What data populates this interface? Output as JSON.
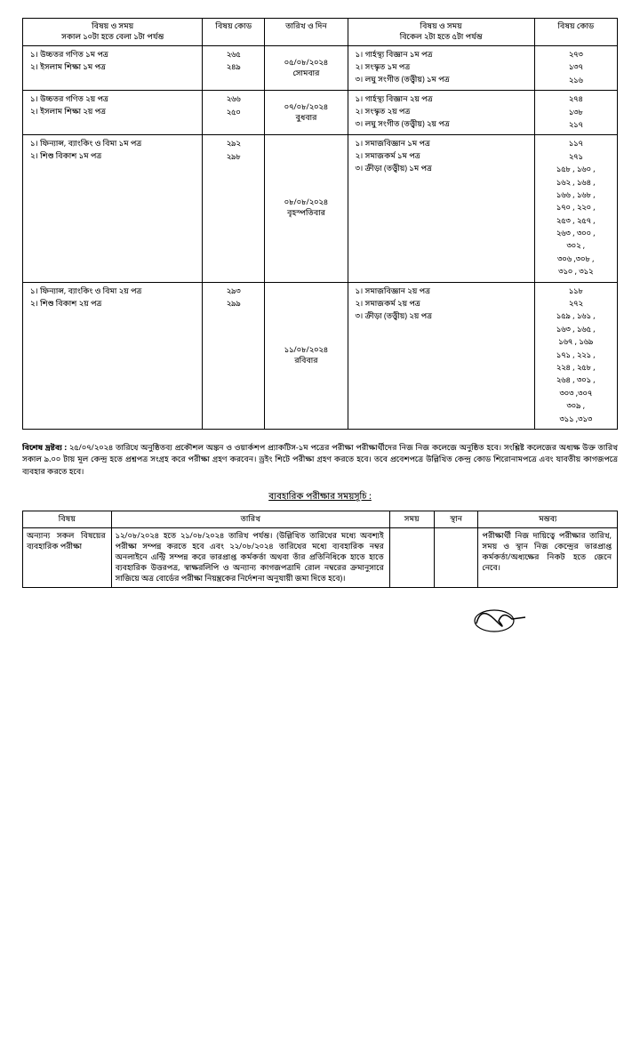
{
  "mainTable": {
    "headers": {
      "morning": "বিষয় ও সময়",
      "morningSub": "সকাল ১০টা হতে বেলা ১টা পর্যন্ত",
      "code1": "বিষয় কোড",
      "date": "তারিখ ও দিন",
      "afternoon": "বিষয় ও সময়",
      "afternoonSub": "বিকেল ২টা হতে ৫টা পর্যন্ত",
      "code2": "বিষয় কোড"
    },
    "rows": [
      {
        "morning": [
          "১।  উচ্চতর গণিত ১ম পত্র",
          "২।  ইসলাম শিক্ষা ১ম পত্র"
        ],
        "code1": [
          "২৬৫",
          "২৪৯"
        ],
        "date": "০৫/০৮/২০২৪\nসোমবার",
        "afternoon": [
          "১।   গার্হস্থ্য বিজ্ঞান ১ম পত্র",
          "২।   সংস্কৃত ১ম পত্র",
          "৩।   লঘু সংগীত (তত্ত্বীয়) ১ম পত্র"
        ],
        "code2": [
          "২৭৩",
          "১৩৭",
          "২১৬"
        ]
      },
      {
        "morning": [
          "১।  উচ্চতর গণিত ২য় পত্র",
          "২।  ইসলাম শিক্ষা ২য় পত্র"
        ],
        "code1": [
          "২৬৬",
          "২৫০"
        ],
        "date": "০৭/০৮/২০২৪\nবুধবার",
        "afternoon": [
          "১।   গার্হস্থ্য বিজ্ঞান ২য় পত্র",
          "২।   সংস্কৃত ২য় পত্র",
          "৩।   লঘু  সংগীত (তত্ত্বীয়) ২য় পত্র"
        ],
        "code2": [
          "২৭৪",
          "১৩৮",
          "২১৭"
        ]
      },
      {
        "morning": [
          "১।  ফিন্যান্স, ব্যাংকিং ও বিমা ১ম পত্র",
          "২।  শিশু বিকাশ ১ম পত্র"
        ],
        "code1": [
          "২৯২",
          "২৯৮"
        ],
        "date": "০৮/০৮/২০২৪\nবৃহস্পতিবার",
        "afternoon": [
          "১।   সমাজবিজ্ঞান ১ম পত্র",
          "২।   সমাজকর্ম ১ম পত্র",
          "৩।   ক্রীড়া (তত্ত্বীয়) ১ম পত্র"
        ],
        "code2": [
          "১১৭",
          "২৭১",
          "১৫৮ , ১৬০ ,",
          "১৬২ , ১৬৪ ,",
          "১৬৬ , ১৬৮ ,",
          "১৭০ , ২২০ ,",
          "২৫৩ , ২৫৭ ,",
          "২৬৩ ,  ৩০০ ,",
          "৩০২ ,",
          "৩০৬ ,৩০৮ ,",
          "৩১০ , ৩১২"
        ]
      },
      {
        "morning": [
          "১।   ফিন্যান্স, ব্যাংকিং ও বিমা ২য় পত্র",
          "২।   শিশু বিকাশ ২য় পত্র"
        ],
        "code1": [
          "২৯৩",
          "২৯৯"
        ],
        "date": "১১/০৮/২০২৪\nরবিবার",
        "afternoon": [
          "১।   সমাজবিজ্ঞান ২য় পত্র",
          "২।   সমাজকর্ম ২য় পত্র",
          "৩।   ক্রীড়া (তত্ত্বীয়) ২য় পত্র"
        ],
        "code2": [
          "১১৮",
          "২৭২",
          "১৫৯ , ১৬১ ,",
          "১৬৩ , ১৬৫ ,",
          "১৬৭ , ১৬৯",
          "১৭১ , ২২১ ,",
          "২২৪ , ২৫৮ ,",
          "২৬৪ , ৩০১ ,",
          "৩০৩ ,৩০৭",
          "৩০৯ ,",
          "৩১১ ,৩১৩"
        ]
      }
    ]
  },
  "noteLabel": "বিশেষ দ্রষ্টব্য :",
  "noteText": "২৫/০৭/২০২৪ তারিখে অনুষ্ঠিতব্য প্রকৌশল অঙ্কন ও ওয়ার্কশপ প্র্যাকটিস-১ম পত্রের পরীক্ষা পরীক্ষার্থীদের নিজ নিজ কলেজে অনুষ্ঠিত হবে। সংশ্লিষ্ট কলেজের অধ্যক্ষ উক্ত তারিখ সকাল ৯.০০ টায় মূল কেন্দ্র হতে প্রশ্নপত্র সংগ্রহ করে পরীক্ষা গ্রহণ করবেন। ড্রইং শিটে পরীক্ষা গ্রহণ করতে হবে। তবে প্রবেশপত্রে উল্লিখিত কেন্দ্র কোড শিরোনামপত্রে এবং যাবতীয় কাগজপত্রে ব্যবহার করতে হবে।",
  "practicalTitle": "ব্যবহারিক পরীক্ষার সময়সূচি :",
  "practicalTable": {
    "headers": {
      "subject": "বিষয়",
      "date": "তারিখ",
      "time": "সময়",
      "place": "স্থান",
      "remarks": "মন্তব্য"
    },
    "row": {
      "subject": "অন্যান্য সকল বিষয়ের ব্যবহারিক পরীক্ষা",
      "date": "১২/০৮/২০২৪ হতে ২১/০৮/২০২৪ তারিখ পর্যন্ত। (উল্লিখিত তারিখের মধ্যে অবশ্যই পরীক্ষা সম্পন্ন করতে হবে এবং ২২/০৮/২০২৪ তারিখের মধ্যে ব্যবহারিক নম্বর অনলাইনে এন্ট্রি সম্পন্ন করে ভারপ্রাপ্ত কর্মকর্তা অথবা তাঁর প্রতিনিধিকে হাতে হাতে ব্যবহারিক উত্তরপত্র, স্বাক্ষরলিপি ও অন্যান্য কাগজপত্রাদি রোল নম্বরের ক্রমানুসারে সাজিয়ে অত্র বোর্ডের পরীক্ষা নিয়ন্ত্রকের নির্দেশনা অনুযায়ী জমা দিতে হবে)।",
      "remarks": "পরীক্ষার্থী নিজ দায়িত্বে পরীক্ষার তারিখ, সময় ও স্থান নিজ কেন্দ্রের ভারপ্রাপ্ত কর্মকর্তা/অধ্যক্ষের নিকট হতে জেনে নেবে।"
    }
  }
}
